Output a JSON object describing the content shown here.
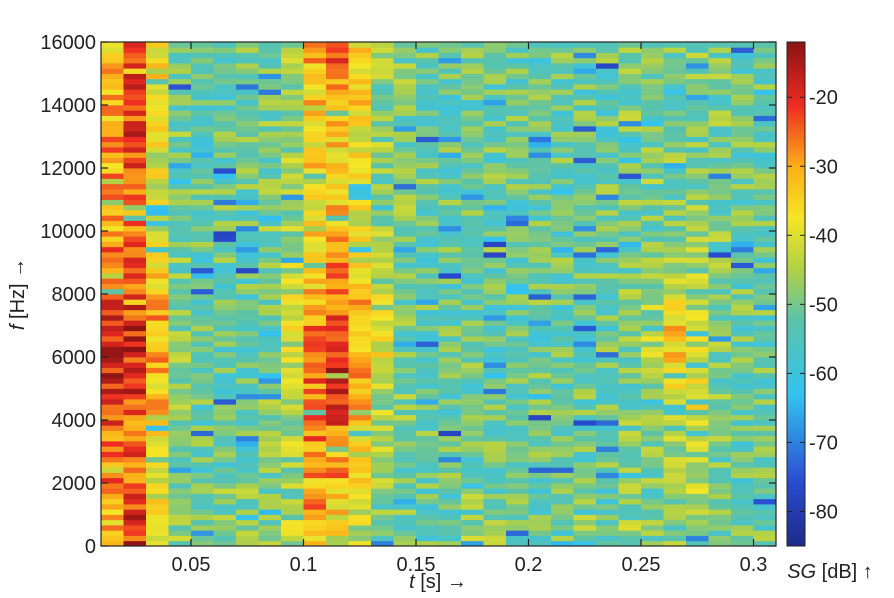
{
  "chart_data": {
    "type": "heatmap",
    "title": "",
    "xlabel": {
      "symbol": "t",
      "unit": " [s] →"
    },
    "ylabel": {
      "symbol": "f",
      "unit": " [Hz] →"
    },
    "colorbar_label": {
      "symbol": "SG",
      "unit": " [dB] ↑"
    },
    "xlim": [
      0.01,
      0.31
    ],
    "ylim": [
      0,
      16000
    ],
    "clim": [
      -85,
      -12
    ],
    "x_ticks": [
      0.05,
      0.1,
      0.15,
      0.2,
      0.25,
      0.3
    ],
    "x_tick_labels": [
      "0.05",
      "0.1",
      "0.15",
      "0.2",
      "0.25",
      "0.3"
    ],
    "y_ticks": [
      0,
      2000,
      4000,
      6000,
      8000,
      10000,
      12000,
      14000,
      16000
    ],
    "y_tick_labels": [
      "0",
      "2000",
      "4000",
      "6000",
      "8000",
      "10000",
      "12000",
      "14000",
      "16000"
    ],
    "colorbar_ticks": [
      -20,
      -30,
      -40,
      -50,
      -60,
      -70,
      -80
    ],
    "colorbar_tick_labels": [
      "-20",
      "-30",
      "-40",
      "-50",
      "-60",
      "-70",
      "-80"
    ],
    "colormap": "jet",
    "time_frame_centers": [
      0.015,
      0.025,
      0.035,
      0.045,
      0.055,
      0.065,
      0.075,
      0.085,
      0.095,
      0.105,
      0.115,
      0.125,
      0.135,
      0.145,
      0.155,
      0.165,
      0.175,
      0.185,
      0.195,
      0.205,
      0.215,
      0.225,
      0.235,
      0.245,
      0.255,
      0.265,
      0.275,
      0.285,
      0.295,
      0.305
    ],
    "frequency_band_centers": [
      500,
      1500,
      2500,
      3500,
      4500,
      5500,
      6500,
      7500,
      8500,
      9500,
      10500,
      11500,
      12500,
      13500,
      14500,
      15500
    ],
    "levels_db": [
      [
        -32,
        -20,
        -38,
        -48,
        -52,
        -50,
        -50,
        -48,
        -45,
        -32,
        -38,
        -42,
        -50,
        -50,
        -52,
        -50,
        -48,
        -50,
        -52,
        -50,
        -52,
        -50,
        -52,
        -48,
        -50,
        -50,
        -48,
        -50,
        -50,
        -50
      ],
      [
        -30,
        -22,
        -40,
        -50,
        -52,
        -50,
        -50,
        -50,
        -48,
        -30,
        -35,
        -40,
        -50,
        -50,
        -52,
        -52,
        -50,
        -50,
        -52,
        -52,
        -52,
        -52,
        -52,
        -50,
        -50,
        -48,
        -42,
        -52,
        -50,
        -52
      ],
      [
        -28,
        -25,
        -38,
        -50,
        -52,
        -52,
        -52,
        -50,
        -48,
        -28,
        -30,
        -38,
        -48,
        -50,
        -52,
        -52,
        -52,
        -52,
        -52,
        -52,
        -52,
        -52,
        -52,
        -50,
        -50,
        -45,
        -44,
        -50,
        -52,
        -52
      ],
      [
        -25,
        -24,
        -36,
        -50,
        -52,
        -52,
        -52,
        -50,
        -45,
        -28,
        -25,
        -36,
        -46,
        -50,
        -52,
        -52,
        -52,
        -52,
        -52,
        -52,
        -52,
        -52,
        -52,
        -50,
        -48,
        -45,
        -42,
        -50,
        -52,
        -52
      ],
      [
        -22,
        -22,
        -34,
        -48,
        -52,
        -52,
        -52,
        -50,
        -44,
        -26,
        -18,
        -34,
        -44,
        -50,
        -52,
        -52,
        -52,
        -52,
        -52,
        -52,
        -52,
        -52,
        -52,
        -50,
        -48,
        -42,
        -40,
        -50,
        -52,
        -52
      ],
      [
        -20,
        -20,
        -30,
        -48,
        -52,
        -52,
        -52,
        -50,
        -42,
        -26,
        -20,
        -32,
        -44,
        -50,
        -52,
        -52,
        -52,
        -52,
        -52,
        -52,
        -52,
        -52,
        -52,
        -50,
        -46,
        -36,
        -40,
        -50,
        -52,
        -52
      ],
      [
        -20,
        -20,
        -28,
        -48,
        -52,
        -52,
        -52,
        -50,
        -42,
        -28,
        -22,
        -30,
        -40,
        -50,
        -52,
        -52,
        -52,
        -52,
        -52,
        -52,
        -52,
        -52,
        -52,
        -50,
        -46,
        -34,
        -42,
        -50,
        -52,
        -52
      ],
      [
        -22,
        -22,
        -32,
        -48,
        -52,
        -52,
        -52,
        -50,
        -42,
        -30,
        -24,
        -32,
        -42,
        -50,
        -52,
        -52,
        -52,
        -52,
        -52,
        -52,
        -52,
        -52,
        -52,
        -50,
        -46,
        -40,
        -44,
        -50,
        -52,
        -52
      ],
      [
        -26,
        -24,
        -36,
        -50,
        -52,
        -52,
        -52,
        -50,
        -44,
        -34,
        -28,
        -36,
        -46,
        -50,
        -52,
        -52,
        -52,
        -52,
        -52,
        -52,
        -52,
        -52,
        -52,
        -50,
        -48,
        -44,
        -46,
        -50,
        -52,
        -52
      ],
      [
        -28,
        -26,
        -38,
        -50,
        -52,
        -52,
        -52,
        -50,
        -46,
        -36,
        -30,
        -38,
        -48,
        -50,
        -52,
        -52,
        -52,
        -52,
        -52,
        -52,
        -52,
        -52,
        -52,
        -50,
        -50,
        -48,
        -48,
        -50,
        -52,
        -52
      ],
      [
        -30,
        -28,
        -40,
        -50,
        -52,
        -52,
        -52,
        -50,
        -46,
        -38,
        -32,
        -38,
        -48,
        -50,
        -52,
        -52,
        -52,
        -52,
        -52,
        -52,
        -52,
        -52,
        -52,
        -50,
        -50,
        -48,
        -48,
        -50,
        -52,
        -52
      ],
      [
        -30,
        -26,
        -40,
        -50,
        -52,
        -52,
        -52,
        -50,
        -46,
        -38,
        -34,
        -40,
        -48,
        -50,
        -52,
        -52,
        -52,
        -52,
        -52,
        -52,
        -52,
        -52,
        -52,
        -50,
        -50,
        -50,
        -50,
        -50,
        -52,
        -52
      ],
      [
        -30,
        -24,
        -40,
        -50,
        -52,
        -52,
        -52,
        -50,
        -46,
        -36,
        -34,
        -40,
        -48,
        -50,
        -52,
        -52,
        -52,
        -52,
        -52,
        -52,
        -52,
        -52,
        -52,
        -50,
        -50,
        -50,
        -50,
        -50,
        -52,
        -52
      ],
      [
        -32,
        -22,
        -38,
        -50,
        -52,
        -52,
        -52,
        -50,
        -46,
        -36,
        -32,
        -38,
        -48,
        -50,
        -52,
        -52,
        -52,
        -52,
        -52,
        -52,
        -52,
        -52,
        -52,
        -50,
        -50,
        -50,
        -50,
        -50,
        -52,
        -52
      ],
      [
        -32,
        -22,
        -38,
        -50,
        -52,
        -52,
        -52,
        -50,
        -46,
        -34,
        -30,
        -36,
        -48,
        -50,
        -52,
        -52,
        -52,
        -52,
        -52,
        -52,
        -52,
        -52,
        -52,
        -50,
        -50,
        -50,
        -50,
        -50,
        -52,
        -52
      ],
      [
        -34,
        -22,
        -38,
        -50,
        -52,
        -52,
        -52,
        -50,
        -46,
        -32,
        -24,
        -34,
        -48,
        -50,
        -52,
        -52,
        -52,
        -52,
        -52,
        -52,
        -52,
        -52,
        -52,
        -50,
        -50,
        -50,
        -50,
        -50,
        -52,
        -52
      ]
    ]
  }
}
